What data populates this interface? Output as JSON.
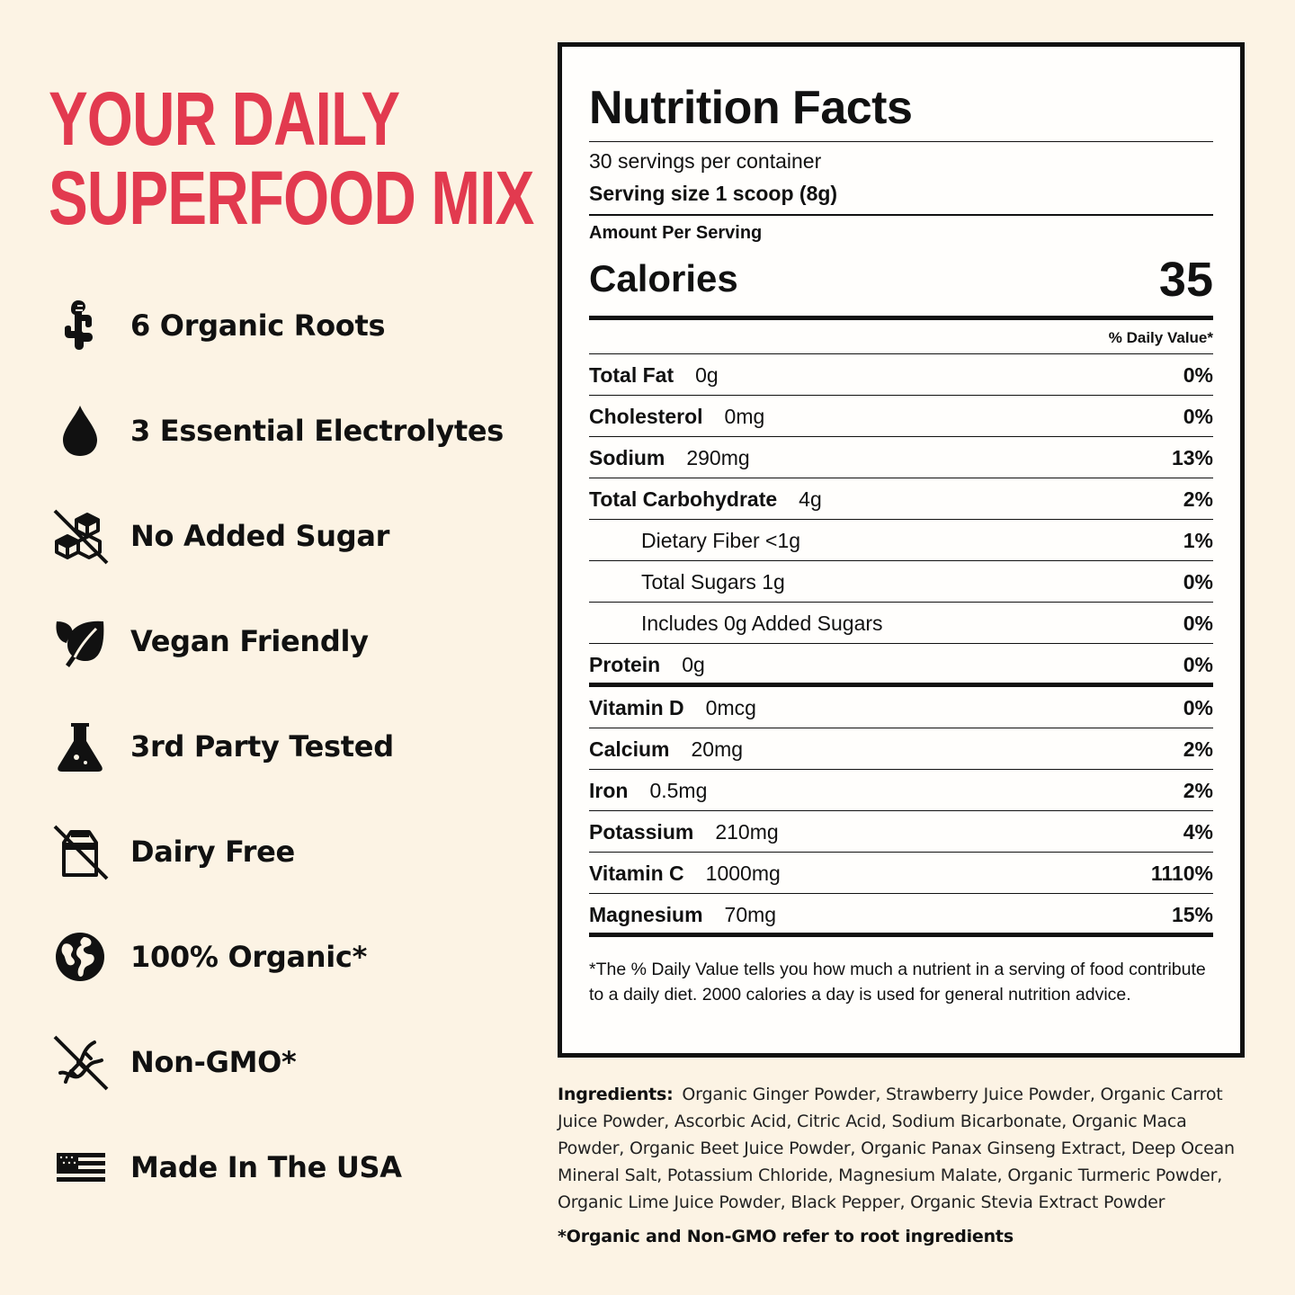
{
  "headline": {
    "line1": "YOUR DAILY",
    "line2": "SUPERFOOD MIX",
    "color": "#e23a4f"
  },
  "features": [
    {
      "icon": "ginger-root-icon",
      "label": "6 Organic Roots"
    },
    {
      "icon": "water-drop-icon",
      "label": "3 Essential Electrolytes"
    },
    {
      "icon": "no-sugar-cubes-icon",
      "label": "No Added Sugar"
    },
    {
      "icon": "leaf-icon",
      "label": "Vegan Friendly"
    },
    {
      "icon": "lab-flask-icon",
      "label": "3rd Party Tested"
    },
    {
      "icon": "no-milk-carton-icon",
      "label": "Dairy Free"
    },
    {
      "icon": "globe-icon",
      "label": "100% Organic*"
    },
    {
      "icon": "no-gmo-dna-icon",
      "label": "Non-GMO*"
    },
    {
      "icon": "usa-flag-icon",
      "label": "Made In The USA"
    }
  ],
  "nutrition": {
    "title": "Nutrition Facts",
    "servings_per_container": "30 servings per container",
    "serving_size": "Serving size 1 scoop (8g)",
    "amount_per_serving": "Amount Per Serving",
    "calories_label": "Calories",
    "calories_value": "35",
    "daily_value_header": "% Daily Value*",
    "rows": [
      {
        "name": "Total Fat",
        "amount": "0g",
        "dv": "0%",
        "sub": false
      },
      {
        "name": "Cholesterol",
        "amount": "0mg",
        "dv": "0%",
        "sub": false
      },
      {
        "name": "Sodium",
        "amount": "290mg",
        "dv": "13%",
        "sub": false
      },
      {
        "name": "Total Carbohydrate",
        "amount": "4g",
        "dv": "2%",
        "sub": false
      },
      {
        "name": "Dietary Fiber <1g",
        "amount": "",
        "dv": "1%",
        "sub": true
      },
      {
        "name": "Total Sugars 1g",
        "amount": "",
        "dv": "0%",
        "sub": true
      },
      {
        "name": "Includes 0g Added Sugars",
        "amount": "",
        "dv": "0%",
        "sub": true
      },
      {
        "name": "Protein",
        "amount": "0g",
        "dv": "0%",
        "sub": false
      },
      {
        "name": "Vitamin D",
        "amount": "0mcg",
        "dv": "0%",
        "sub": false
      },
      {
        "name": "Calcium",
        "amount": "20mg",
        "dv": "2%",
        "sub": false
      },
      {
        "name": "Iron",
        "amount": "0.5mg",
        "dv": "2%",
        "sub": false
      },
      {
        "name": "Potassium",
        "amount": "210mg",
        "dv": "4%",
        "sub": false
      },
      {
        "name": "Vitamin C",
        "amount": "1000mg",
        "dv": "1110%",
        "sub": false
      },
      {
        "name": "Magnesium",
        "amount": "70mg",
        "dv": "15%",
        "sub": false
      }
    ],
    "footnote": "*The % Daily Value tells you how much a nutrient in a serving of food contribute to a daily diet. 2000 calories a day is used for general nutrition advice."
  },
  "ingredients": {
    "label": "Ingredients:",
    "text": "Organic Ginger Powder, Strawberry Juice Powder, Organic Carrot Juice Powder, Ascorbic Acid, Citric Acid, Sodium Bicarbonate, Organic Maca Powder, Organic Beet Juice Powder, Organic Panax Ginseng Extract, Deep Ocean Mineral Salt, Potassium Chloride, Magnesium Malate, Organic Turmeric Powder, Organic Lime Juice Powder, Black Pepper, Organic Stevia Extract Powder"
  },
  "root_note": "*Organic and Non-GMO refer to root ingredients"
}
